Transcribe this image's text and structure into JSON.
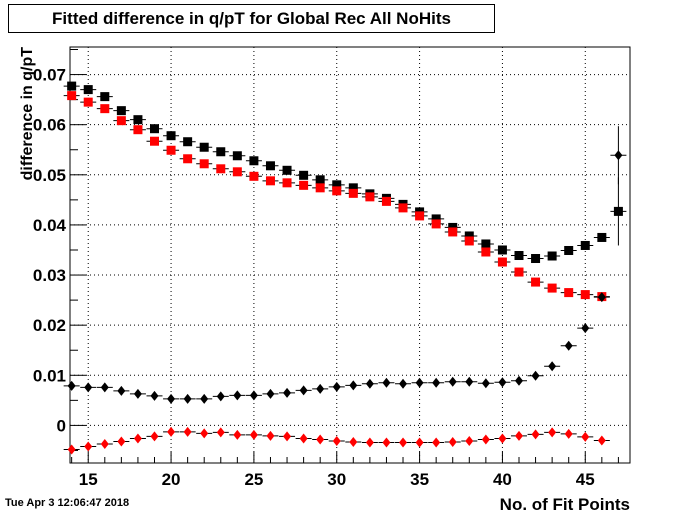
{
  "chart_data": {
    "type": "scatter",
    "title": "Fitted difference in q/pT  for Global Rec All NoHits",
    "xlabel": "No. of Fit Points",
    "ylabel": "difference in q/pT",
    "xlim": [
      13.9,
      47.7
    ],
    "ylim": [
      -0.0075,
      0.0755
    ],
    "x_ticks": [
      15,
      20,
      25,
      30,
      35,
      40,
      45
    ],
    "y_ticks": [
      0,
      0.01,
      0.02,
      0.03,
      0.04,
      0.05,
      0.06,
      0.07
    ],
    "y_tick_labels": [
      "0",
      "0.01",
      "0.02",
      "0.03",
      "0.04",
      "0.05",
      "0.06",
      "0.07"
    ],
    "grid": true,
    "series": [
      {
        "marker": "square",
        "color": "#000000",
        "x": [
          14,
          15,
          16,
          17,
          18,
          19,
          20,
          21,
          22,
          23,
          24,
          25,
          26,
          27,
          28,
          29,
          30,
          31,
          32,
          33,
          34,
          35,
          36,
          37,
          38,
          39,
          40,
          41,
          42,
          43,
          44,
          45,
          46,
          47
        ],
        "y": [
          0.0677,
          0.067,
          0.0656,
          0.0628,
          0.061,
          0.0592,
          0.0578,
          0.0566,
          0.0555,
          0.0546,
          0.0538,
          0.0528,
          0.0518,
          0.0509,
          0.0499,
          0.049,
          0.048,
          0.0474,
          0.0462,
          0.0453,
          0.0441,
          0.0426,
          0.0412,
          0.0395,
          0.0378,
          0.0362,
          0.035,
          0.0339,
          0.0333,
          0.0338,
          0.0349,
          0.0359,
          0.0375,
          0.0427
        ],
        "yerr": [
          0,
          0,
          0,
          0,
          0,
          0,
          0,
          0,
          0,
          0,
          0,
          0,
          0,
          0,
          0,
          0,
          0,
          0,
          0,
          0,
          0,
          0,
          0,
          0,
          0,
          0,
          0,
          0,
          0,
          0,
          0,
          0,
          0,
          0.0068
        ]
      },
      {
        "marker": "square",
        "color": "#ff0000",
        "x": [
          14,
          15,
          16,
          17,
          18,
          19,
          20,
          21,
          22,
          23,
          24,
          25,
          26,
          27,
          28,
          29,
          30,
          31,
          32,
          33,
          34,
          35,
          36,
          37,
          38,
          39,
          40,
          41,
          42,
          43,
          44,
          45,
          46
        ],
        "y": [
          0.0658,
          0.0645,
          0.0632,
          0.0608,
          0.059,
          0.0567,
          0.0549,
          0.0532,
          0.0522,
          0.0512,
          0.0506,
          0.0497,
          0.0488,
          0.0484,
          0.0479,
          0.0474,
          0.0468,
          0.0463,
          0.0456,
          0.0447,
          0.0434,
          0.0418,
          0.0402,
          0.0386,
          0.0368,
          0.0346,
          0.0326,
          0.0306,
          0.0286,
          0.0274,
          0.0265,
          0.0261,
          0.0257
        ]
      },
      {
        "marker": "diamond",
        "color": "#000000",
        "x": [
          14,
          15,
          16,
          17,
          18,
          19,
          20,
          21,
          22,
          23,
          24,
          25,
          26,
          27,
          28,
          29,
          30,
          31,
          32,
          33,
          34,
          35,
          36,
          37,
          38,
          39,
          40,
          41,
          42,
          43,
          44,
          45,
          46,
          47
        ],
        "y": [
          0.0079,
          0.0076,
          0.0076,
          0.0069,
          0.0063,
          0.0059,
          0.0053,
          0.0053,
          0.0053,
          0.0058,
          0.006,
          0.006,
          0.0063,
          0.0065,
          0.007,
          0.0073,
          0.0077,
          0.008,
          0.0083,
          0.0085,
          0.0083,
          0.0085,
          0.0085,
          0.0087,
          0.0087,
          0.0084,
          0.0086,
          0.0089,
          0.0099,
          0.0118,
          0.0159,
          0.0194,
          0.0256,
          0.0539
        ],
        "yerr": [
          0,
          0,
          0,
          0,
          0,
          0,
          0,
          0,
          0,
          0,
          0,
          0,
          0,
          0,
          0,
          0,
          0,
          0,
          0,
          0,
          0,
          0,
          0,
          0,
          0,
          0,
          0,
          0,
          0,
          0,
          0,
          0,
          0,
          0.0058
        ]
      },
      {
        "marker": "diamond",
        "color": "#ff0000",
        "x": [
          14,
          15,
          16,
          17,
          18,
          19,
          20,
          21,
          22,
          23,
          24,
          25,
          26,
          27,
          28,
          29,
          30,
          31,
          32,
          33,
          34,
          35,
          36,
          37,
          38,
          39,
          40,
          41,
          42,
          43,
          44,
          45,
          46
        ],
        "y": [
          -0.0048,
          -0.0042,
          -0.0037,
          -0.0032,
          -0.0026,
          -0.0022,
          -0.0013,
          -0.0013,
          -0.0016,
          -0.0014,
          -0.0019,
          -0.0019,
          -0.0021,
          -0.0022,
          -0.0026,
          -0.0028,
          -0.0031,
          -0.0033,
          -0.0034,
          -0.0034,
          -0.0034,
          -0.0034,
          -0.0034,
          -0.0033,
          -0.0031,
          -0.0028,
          -0.0026,
          -0.0021,
          -0.0018,
          -0.0014,
          -0.0017,
          -0.0023,
          -0.003
        ]
      }
    ]
  },
  "footer": {
    "date": "Tue Apr  3 12:06:47 2018"
  }
}
